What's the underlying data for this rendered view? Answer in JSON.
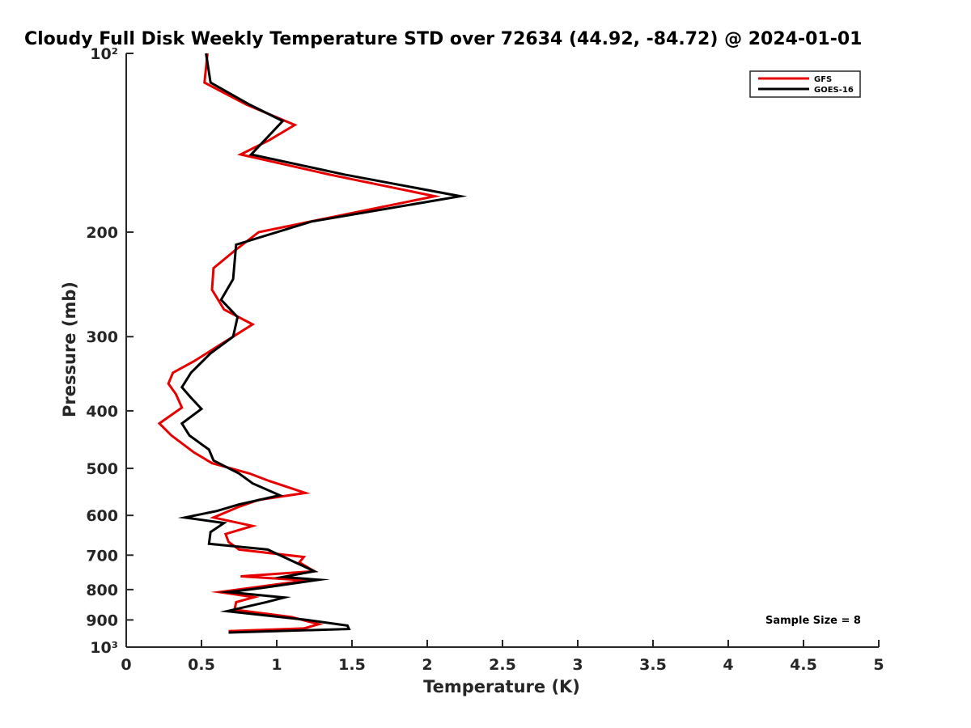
{
  "chart_data": {
    "type": "line",
    "title": "Cloudy Full Disk Weekly Temperature STD over 72634 (44.92, -84.72) @ 2024-01-01",
    "xlabel": "Temperature (K)",
    "ylabel": "Pressure (mb)",
    "xlim": [
      0,
      5
    ],
    "ylim": [
      100,
      1000
    ],
    "y_scale": "log",
    "y_reversed": true,
    "grid": false,
    "legend_placement": "top-right",
    "x_ticks": [
      0,
      0.5,
      1,
      1.5,
      2,
      2.5,
      3,
      3.5,
      4,
      4.5,
      5
    ],
    "x_tick_labels": [
      "0",
      "0.5",
      "1",
      "1.5",
      "2",
      "2.5",
      "3",
      "3.5",
      "4",
      "4.5",
      "5"
    ],
    "y_ticks": [
      100,
      200,
      300,
      400,
      500,
      600,
      700,
      800,
      900,
      1000
    ],
    "y_tick_labels": [
      "10²",
      "200",
      "300",
      "400",
      "500",
      "600",
      "700",
      "800",
      "900",
      "10³"
    ],
    "annotation": "Sample Size = 8",
    "series": [
      {
        "name": "GFS",
        "color": "#e60000",
        "points": [
          [
            0.54,
            100
          ],
          [
            0.52,
            112
          ],
          [
            0.8,
            122
          ],
          [
            1.12,
            132
          ],
          [
            0.95,
            140
          ],
          [
            0.76,
            148
          ],
          [
            1.35,
            160
          ],
          [
            2.05,
            174
          ],
          [
            1.4,
            188
          ],
          [
            0.88,
            200
          ],
          [
            0.72,
            215
          ],
          [
            0.58,
            230
          ],
          [
            0.57,
            250
          ],
          [
            0.65,
            270
          ],
          [
            0.84,
            286
          ],
          [
            0.62,
            310
          ],
          [
            0.45,
            330
          ],
          [
            0.31,
            345
          ],
          [
            0.28,
            360
          ],
          [
            0.33,
            375
          ],
          [
            0.37,
            395
          ],
          [
            0.22,
            420
          ],
          [
            0.3,
            440
          ],
          [
            0.45,
            470
          ],
          [
            0.57,
            490
          ],
          [
            0.82,
            510
          ],
          [
            0.95,
            525
          ],
          [
            1.19,
            550
          ],
          [
            0.88,
            565
          ],
          [
            0.75,
            580
          ],
          [
            0.58,
            605
          ],
          [
            0.84,
            625
          ],
          [
            0.66,
            645
          ],
          [
            0.68,
            665
          ],
          [
            0.75,
            685
          ],
          [
            1.18,
            705
          ],
          [
            1.15,
            720
          ],
          [
            1.25,
            745
          ],
          [
            0.76,
            760
          ],
          [
            1.2,
            772
          ],
          [
            0.62,
            808
          ],
          [
            0.85,
            824
          ],
          [
            0.73,
            840
          ],
          [
            0.72,
            865
          ],
          [
            1.1,
            890
          ],
          [
            1.28,
            915
          ],
          [
            1.18,
            930
          ],
          [
            0.68,
            940
          ]
        ]
      },
      {
        "name": "GOES-16",
        "color": "#000000",
        "points": [
          [
            0.53,
            100
          ],
          [
            0.56,
            112
          ],
          [
            0.82,
            122
          ],
          [
            1.04,
            130
          ],
          [
            0.92,
            140
          ],
          [
            0.83,
            148
          ],
          [
            1.45,
            160
          ],
          [
            2.22,
            174
          ],
          [
            1.23,
            192
          ],
          [
            0.73,
            210
          ],
          [
            0.71,
            240
          ],
          [
            0.63,
            260
          ],
          [
            0.74,
            278
          ],
          [
            0.71,
            300
          ],
          [
            0.56,
            320
          ],
          [
            0.43,
            345
          ],
          [
            0.37,
            365
          ],
          [
            0.43,
            380
          ],
          [
            0.5,
            397
          ],
          [
            0.37,
            420
          ],
          [
            0.42,
            440
          ],
          [
            0.55,
            465
          ],
          [
            0.58,
            485
          ],
          [
            0.75,
            510
          ],
          [
            0.84,
            530
          ],
          [
            1.02,
            555
          ],
          [
            0.75,
            575
          ],
          [
            0.6,
            590
          ],
          [
            0.39,
            605
          ],
          [
            0.65,
            618
          ],
          [
            0.56,
            640
          ],
          [
            0.55,
            670
          ],
          [
            0.94,
            685
          ],
          [
            1.25,
            745
          ],
          [
            1.04,
            762
          ],
          [
            1.28,
            770
          ],
          [
            0.9,
            795
          ],
          [
            0.68,
            808
          ],
          [
            1.05,
            825
          ],
          [
            0.93,
            840
          ],
          [
            0.67,
            870
          ],
          [
            1.2,
            900
          ],
          [
            1.47,
            920
          ],
          [
            1.48,
            932
          ],
          [
            0.68,
            945
          ]
        ]
      }
    ]
  }
}
